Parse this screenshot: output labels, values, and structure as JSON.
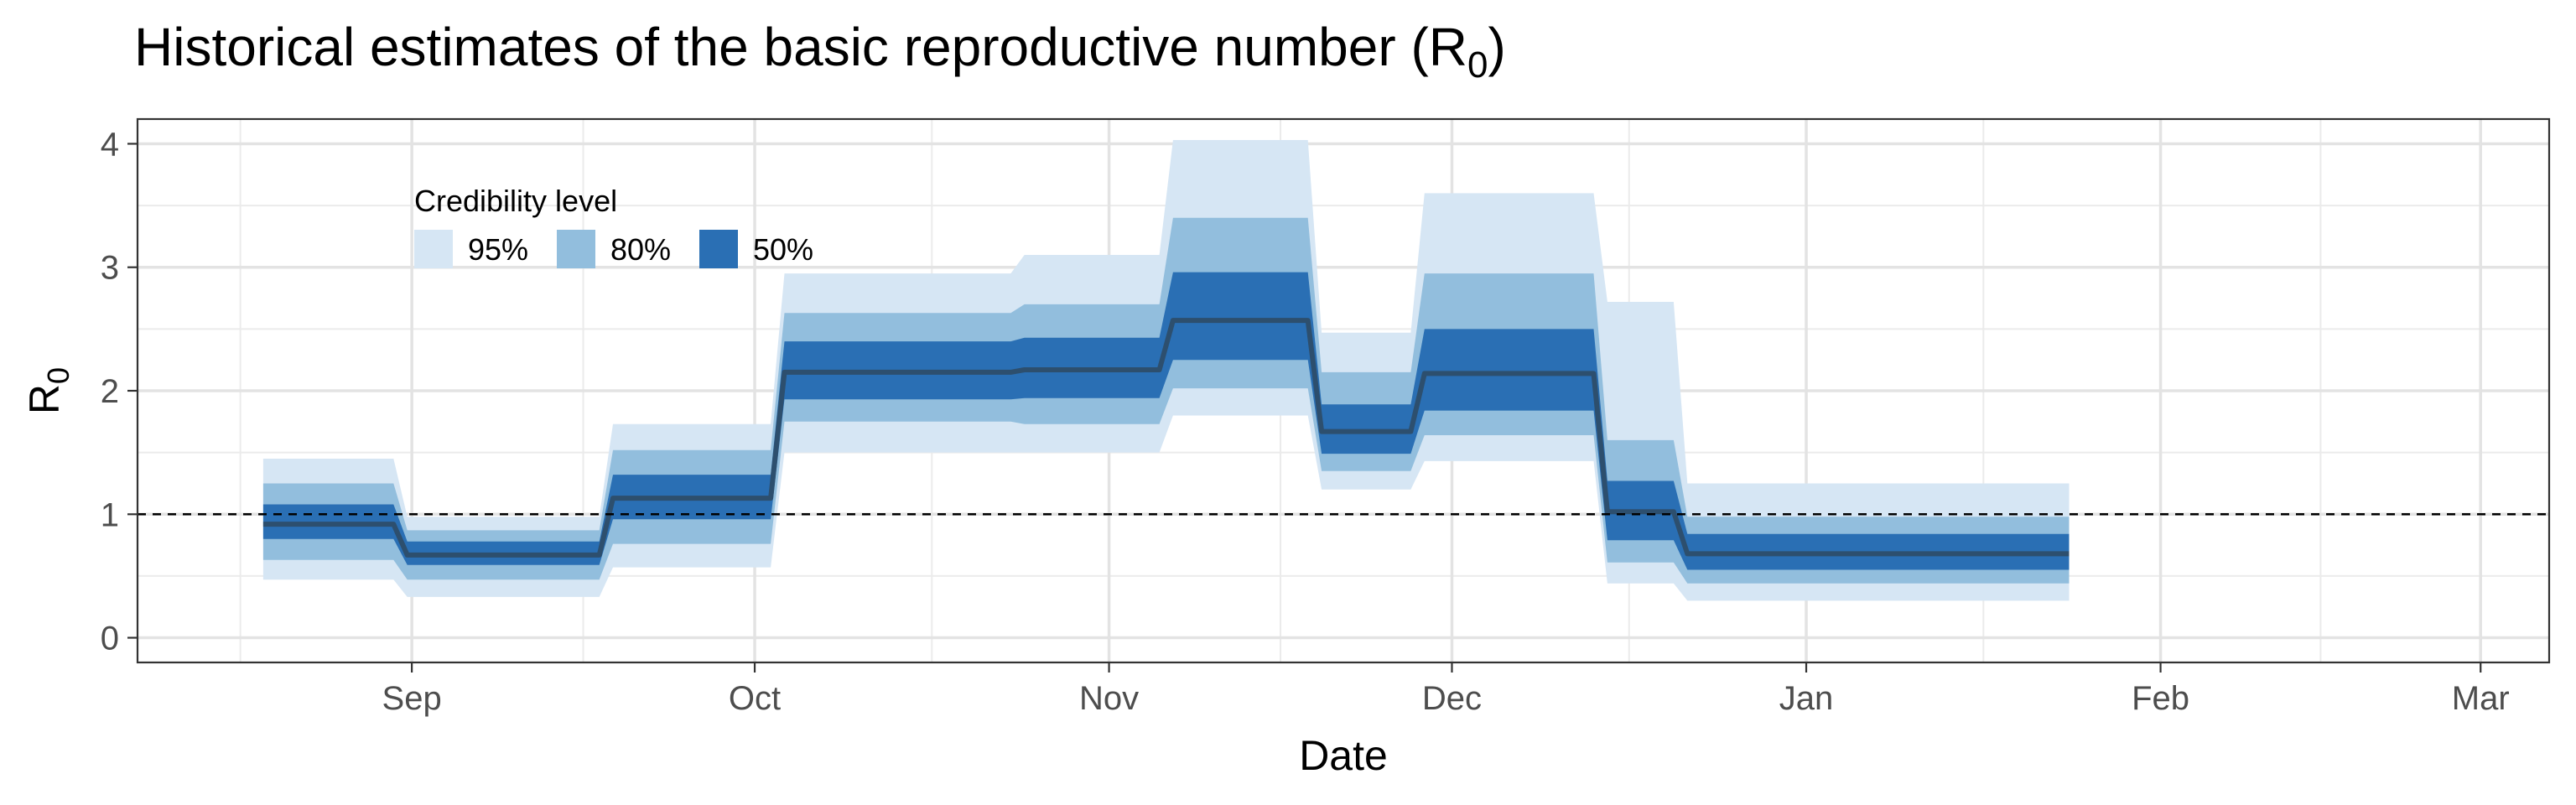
{
  "chart_data": {
    "type": "area",
    "title": "Historical estimates of the basic reproductive number (R",
    "title_subscript": "0",
    "title_suffix": ")",
    "xlabel": "Date",
    "ylabel": "R",
    "ylabel_subscript": "0",
    "x_ticks": [
      {
        "date": "2020-09-01",
        "label": "Sep"
      },
      {
        "date": "2020-10-01",
        "label": "Oct"
      },
      {
        "date": "2020-11-01",
        "label": "Nov"
      },
      {
        "date": "2020-12-01",
        "label": "Dec"
      },
      {
        "date": "2021-01-01",
        "label": "Jan"
      },
      {
        "date": "2021-02-01",
        "label": "Feb"
      },
      {
        "date": "2021-03-01",
        "label": "Mar"
      }
    ],
    "xlim": [
      "2020-08-08",
      "2021-03-07"
    ],
    "y_ticks": [
      0,
      1,
      2,
      3,
      4
    ],
    "ylim": [
      -0.2,
      4.2
    ],
    "reference_line": {
      "y": 1,
      "style": "dashed"
    },
    "grid": true,
    "legend": {
      "title": "Credibility level",
      "placement": "top-left-inside",
      "items": [
        {
          "label": "95%",
          "color": "#d6e6f4"
        },
        {
          "label": "80%",
          "color": "#92bedd"
        },
        {
          "label": "50%",
          "color": "#2a6fb4"
        }
      ]
    },
    "median_color": "#2d4f6e",
    "segments": [
      {
        "start": "2020-08-19",
        "end": "2020-08-31",
        "median": 0.92,
        "ci50": [
          0.8,
          1.08
        ],
        "ci80": [
          0.63,
          1.25
        ],
        "ci95": [
          0.47,
          1.45
        ]
      },
      {
        "start": "2020-08-31",
        "end": "2020-09-18",
        "median": 0.67,
        "ci50": [
          0.59,
          0.78
        ],
        "ci80": [
          0.47,
          0.87
        ],
        "ci95": [
          0.33,
          0.98
        ]
      },
      {
        "start": "2020-09-18",
        "end": "2020-10-03",
        "median": 1.13,
        "ci50": [
          0.96,
          1.32
        ],
        "ci80": [
          0.76,
          1.52
        ],
        "ci95": [
          0.57,
          1.73
        ]
      },
      {
        "start": "2020-10-03",
        "end": "2020-10-24",
        "median": 2.15,
        "ci50": [
          1.93,
          2.4
        ],
        "ci80": [
          1.75,
          2.63
        ],
        "ci95": [
          1.5,
          2.95
        ]
      },
      {
        "start": "2020-10-24",
        "end": "2020-11-06",
        "median": 2.17,
        "ci50": [
          1.94,
          2.43
        ],
        "ci80": [
          1.73,
          2.7
        ],
        "ci95": [
          1.5,
          3.1
        ]
      },
      {
        "start": "2020-11-06",
        "end": "2020-11-19",
        "median": 2.57,
        "ci50": [
          2.25,
          2.96
        ],
        "ci80": [
          2.02,
          3.4
        ],
        "ci95": [
          1.8,
          4.03
        ]
      },
      {
        "start": "2020-11-19",
        "end": "2020-11-28",
        "median": 1.67,
        "ci50": [
          1.49,
          1.89
        ],
        "ci80": [
          1.35,
          2.15
        ],
        "ci95": [
          1.2,
          2.47
        ]
      },
      {
        "start": "2020-11-28",
        "end": "2020-12-14",
        "median": 2.14,
        "ci50": [
          1.84,
          2.5
        ],
        "ci80": [
          1.64,
          2.95
        ],
        "ci95": [
          1.43,
          3.6
        ]
      },
      {
        "start": "2020-12-14",
        "end": "2020-12-21",
        "median": 1.02,
        "ci50": [
          0.79,
          1.27
        ],
        "ci80": [
          0.61,
          1.6
        ],
        "ci95": [
          0.44,
          2.72
        ]
      },
      {
        "start": "2020-12-21",
        "end": "2021-01-24",
        "median": 0.68,
        "ci50": [
          0.55,
          0.84
        ],
        "ci80": [
          0.44,
          0.98
        ],
        "ci95": [
          0.3,
          1.25
        ]
      }
    ]
  }
}
